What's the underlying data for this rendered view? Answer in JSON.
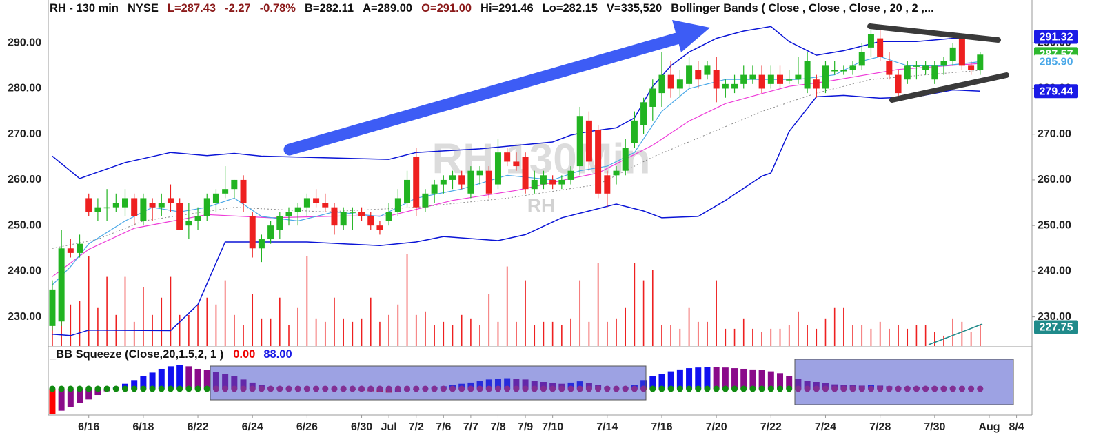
{
  "chart_data": {
    "type": "candlestick",
    "header": [
      {
        "text": "RH - 130 min",
        "color": "#111111"
      },
      {
        "text": "NYSE",
        "color": "#111111"
      },
      {
        "text": "L=287.43",
        "color": "#8b1a1a"
      },
      {
        "text": "-2.27",
        "color": "#8b1a1a"
      },
      {
        "text": "-0.78%",
        "color": "#8b1a1a"
      },
      {
        "text": "B=282.11",
        "color": "#111111"
      },
      {
        "text": "A=289.00",
        "color": "#111111"
      },
      {
        "text": "O=291.00",
        "color": "#8b1a1a"
      },
      {
        "text": "Hi=291.46",
        "color": "#111111"
      },
      {
        "text": "Lo=282.15",
        "color": "#111111"
      },
      {
        "text": "V=335,520",
        "color": "#111111"
      },
      {
        "text": "Bollinger Bands ( Close , Close , Close , 20 , 2 ,...",
        "color": "#111111"
      }
    ],
    "watermark": "RH 130Min",
    "watermark_sub": "RH",
    "xlim": [
      -0.45,
      107.7
    ],
    "xticks": [
      {
        "value": 4,
        "label": "6/16"
      },
      {
        "value": 10,
        "label": "6/18"
      },
      {
        "value": 16,
        "label": "6/22"
      },
      {
        "value": 22,
        "label": "6/24"
      },
      {
        "value": 28,
        "label": "6/26"
      },
      {
        "value": 34,
        "label": "6/30"
      },
      {
        "value": 37,
        "label": "Jul"
      },
      {
        "value": 40,
        "label": "7/2"
      },
      {
        "value": 43,
        "label": "7/6"
      },
      {
        "value": 46,
        "label": "7/7"
      },
      {
        "value": 49,
        "label": "7/8"
      },
      {
        "value": 52,
        "label": "7/9"
      },
      {
        "value": 55,
        "label": "7/10"
      },
      {
        "value": 61,
        "label": "7/14"
      },
      {
        "value": 67,
        "label": "7/16"
      },
      {
        "value": 73,
        "label": "7/20"
      },
      {
        "value": 79,
        "label": "7/22"
      },
      {
        "value": 85,
        "label": "7/24"
      },
      {
        "value": 91,
        "label": "7/28"
      },
      {
        "value": 97,
        "label": "7/30"
      },
      {
        "value": 103,
        "label": "Aug"
      },
      {
        "value": 106,
        "label": "8/4"
      }
    ],
    "ylim": [
      223.6,
      299.4
    ],
    "yticks": [
      {
        "value": 290,
        "label": "290.00"
      },
      {
        "value": 280,
        "label": "280.00"
      },
      {
        "value": 270,
        "label": "270.00"
      },
      {
        "value": 260,
        "label": "260.00"
      },
      {
        "value": 250,
        "label": "250.00"
      },
      {
        "value": 240,
        "label": "240.00"
      },
      {
        "value": 230,
        "label": "230.00"
      }
    ],
    "up_color": "#22b422",
    "down_color": "#ee2020",
    "open": [
      228,
      229,
      245,
      244,
      256,
      253,
      254,
      254,
      254,
      256,
      251,
      255,
      254,
      256,
      255,
      250,
      251,
      252,
      255,
      257,
      258,
      260,
      252,
      245,
      247,
      249,
      252,
      253,
      254,
      256,
      255,
      254,
      250,
      253,
      253,
      252,
      250,
      251,
      253,
      255,
      265,
      254,
      257,
      259,
      260,
      261,
      257,
      261,
      262,
      259,
      266,
      264,
      265,
      258,
      259,
      260,
      259,
      260,
      263,
      273,
      271,
      261,
      261,
      262,
      268,
      272,
      276,
      279,
      283,
      280,
      281,
      284,
      283,
      284,
      280,
      280,
      281,
      282,
      283,
      281,
      283,
      282,
      282,
      280,
      282,
      280,
      284,
      284,
      284,
      285,
      289,
      291,
      286,
      283,
      282,
      285,
      284,
      282,
      285,
      286,
      291,
      285,
      284
    ],
    "high": [
      238,
      249,
      247,
      248,
      257,
      256,
      258,
      257,
      258,
      257,
      257,
      256,
      257,
      259,
      256,
      255,
      254,
      257,
      258,
      263,
      260,
      261,
      253,
      248,
      251,
      253,
      254,
      255,
      257,
      258,
      257,
      255,
      254,
      254,
      254,
      253,
      251,
      255,
      258,
      262,
      267,
      258,
      260,
      261,
      262,
      262,
      263,
      263,
      263,
      269,
      267,
      266,
      266,
      262,
      262,
      261,
      261,
      263,
      276,
      275,
      272,
      262,
      263,
      269,
      275,
      278,
      282,
      288,
      286,
      284,
      287,
      286,
      286,
      287,
      282,
      283,
      285,
      285,
      285,
      285,
      285,
      284,
      287,
      288,
      283,
      286,
      286,
      285,
      286,
      290,
      293,
      293,
      288,
      284,
      286,
      286,
      286,
      286,
      287,
      290,
      292,
      286,
      288
    ],
    "low": [
      227,
      228,
      243,
      243,
      252,
      251,
      251,
      253,
      252,
      250,
      250,
      251,
      252,
      253,
      249,
      247,
      249,
      251,
      253,
      256,
      256,
      253,
      243,
      242,
      246,
      247,
      250,
      250,
      252,
      254,
      253,
      248,
      249,
      249,
      251,
      249,
      248,
      250,
      252,
      254,
      252,
      253,
      255,
      257,
      258,
      258,
      256,
      259,
      256,
      258,
      263,
      262,
      257,
      257,
      258,
      258,
      258,
      259,
      261,
      262,
      256,
      254,
      259,
      261,
      267,
      270,
      273,
      276,
      278,
      278,
      280,
      280,
      282,
      277,
      278,
      279,
      280,
      281,
      279,
      280,
      280,
      281,
      281,
      279,
      278,
      279,
      283,
      283,
      283,
      284,
      287,
      286,
      282,
      278,
      281,
      282,
      283,
      281,
      283,
      285,
      284,
      283,
      283
    ],
    "close": [
      236,
      245,
      244,
      246,
      253,
      254,
      254,
      255,
      256,
      252,
      256,
      254,
      255,
      255,
      249,
      251,
      252,
      256,
      257,
      258,
      260,
      255,
      245,
      247,
      250,
      252,
      253,
      254,
      256,
      255,
      254,
      250,
      253,
      253,
      252,
      250,
      249,
      253,
      256,
      260,
      254,
      257,
      259,
      260,
      261,
      259,
      262,
      262,
      257,
      266,
      264,
      263,
      258,
      260,
      261,
      259,
      260,
      262,
      274,
      264,
      257,
      257,
      262,
      267,
      273,
      277,
      280,
      283,
      280,
      282,
      285,
      282,
      285,
      280,
      281,
      281,
      283,
      283,
      280,
      283,
      281,
      282,
      283,
      286,
      280,
      285,
      284,
      284,
      285,
      288,
      292,
      287,
      283,
      279,
      285,
      285,
      285,
      285,
      286,
      289,
      285,
      284,
      287.43
    ],
    "volume_color": "#ee2020",
    "volume_ylim": [
      0,
      5250000
    ],
    "volume": [
      735000,
      945000,
      630000,
      682500,
      1365000,
      577500,
      1050000,
      472500,
      1050000,
      367500,
      892500,
      472500,
      735000,
      1050000,
      472500,
      472500,
      630000,
      735000,
      630000,
      997500,
      472500,
      315000,
      787500,
      420000,
      420000,
      735000,
      315000,
      577500,
      1365000,
      420000,
      367500,
      735000,
      420000,
      367500,
      420000,
      735000,
      367500,
      472500,
      630000,
      1396500,
      472500,
      525000,
      315000,
      367500,
      315000,
      472500,
      420000,
      315000,
      787500,
      367500,
      1207500,
      367500,
      997500,
      315000,
      367500,
      367500,
      315000,
      420000,
      997500,
      367500,
      1260000,
      367500,
      420000,
      577500,
      1260000,
      997500,
      1155000,
      315000,
      315000,
      262500,
      577500,
      367500,
      367500,
      997500,
      262500,
      262500,
      420000,
      262500,
      210000,
      262500,
      262500,
      315000,
      525000,
      315000,
      262500,
      420000,
      577500,
      577500,
      315000,
      315000,
      262500,
      367500,
      262500,
      315000,
      262500,
      315000,
      315000,
      210000,
      157500,
      420000,
      367500,
      210000,
      335520
    ],
    "overlays": [
      {
        "color": "#0a14d6",
        "width": 1.5,
        "dashed": false,
        "x": [
          0,
          3,
          8,
          13,
          17,
          20,
          23,
          37,
          40,
          47,
          55,
          57,
          59,
          62,
          64,
          66,
          68,
          70,
          73,
          76,
          79,
          81,
          84,
          87,
          91,
          95,
          99,
          102
        ],
        "values": [
          265.2,
          260.3,
          263.8,
          266,
          265.3,
          265.8,
          265.2,
          264.5,
          266,
          266.8,
          268.3,
          269.8,
          270.6,
          271.4,
          273.6,
          280.5,
          285,
          288,
          291,
          292.6,
          293.6,
          290.3,
          287.3,
          288.3,
          290.3,
          290.3,
          291,
          291.32
        ]
      },
      {
        "color": "#0a14d6",
        "width": 1.5,
        "dashed": false,
        "x": [
          0,
          2,
          4,
          13,
          16,
          19,
          21,
          28,
          36,
          40,
          43,
          49,
          52,
          56,
          59,
          62,
          65,
          67,
          71,
          74,
          78,
          79,
          81,
          84,
          87,
          91,
          95,
          99,
          102
        ],
        "values": [
          226.2,
          225.9,
          227.1,
          227,
          232.7,
          246.4,
          246.4,
          246.4,
          245.6,
          246.4,
          247.6,
          246.7,
          248,
          251.7,
          253.2,
          254.7,
          253.2,
          251.7,
          252,
          255.5,
          260.8,
          261.5,
          270.6,
          278.2,
          278.5,
          277.9,
          278.2,
          279.7,
          279.44
        ]
      },
      {
        "color": "#ee3ad8",
        "width": 1.2,
        "dashed": false,
        "x": [
          0,
          4,
          9,
          17,
          24,
          32,
          37,
          44,
          51,
          57,
          60,
          66,
          70,
          74,
          78,
          81,
          85,
          90,
          93,
          97,
          102
        ],
        "values": [
          238.8,
          244.8,
          249.4,
          252.4,
          251.7,
          252.1,
          252.1,
          255.5,
          257.7,
          260.3,
          261.5,
          267.6,
          272.9,
          276.7,
          278.9,
          280.5,
          281.5,
          283.2,
          284.2,
          284.8,
          285.5
        ]
      },
      {
        "color": "#4aa8e8",
        "width": 1.2,
        "dashed": false,
        "x": [
          0,
          2,
          4,
          8,
          11,
          14,
          17,
          20,
          23,
          27,
          31,
          36,
          40,
          45,
          50,
          55,
          58,
          61,
          64,
          67,
          70,
          74,
          78,
          82,
          86,
          89,
          91,
          94,
          98,
          102
        ],
        "values": [
          237,
          241,
          246,
          251,
          254,
          253,
          254,
          256,
          252,
          251,
          253,
          252,
          256,
          258,
          261,
          260,
          262,
          263,
          266,
          275,
          280,
          282,
          282,
          282,
          283,
          286,
          287,
          285,
          285,
          285.9
        ]
      },
      {
        "color": "#888888",
        "width": 1,
        "dashed": true,
        "x": [
          0,
          5,
          10,
          20,
          30,
          40,
          50,
          60,
          66,
          72,
          78,
          84,
          90,
          96,
          102
        ],
        "values": [
          245,
          247,
          251,
          254,
          253,
          254,
          256,
          259,
          265,
          270,
          275,
          279,
          282,
          283,
          284
        ]
      }
    ],
    "price_labels": [
      {
        "value": 291.32,
        "label": "291.32",
        "bg": "#1a1ae6",
        "fg": "#ffffff"
      },
      {
        "value": 287.57,
        "label": "287.57",
        "bg": "#2eb82e",
        "fg": "#ffffff"
      },
      {
        "value": 285.9,
        "label": "285.90",
        "bg": "#ffffff",
        "fg": "#4aa8e8"
      },
      {
        "value": 279.44,
        "label": "279.44",
        "bg": "#1a1ae6",
        "fg": "#ffffff"
      },
      {
        "value": 227.75,
        "label": "227.75",
        "bg": "#1f8a8a",
        "fg": "#ffffff"
      }
    ],
    "indicator": {
      "title": "_BB Squeeze (Close,20,1.5,2, 1 )",
      "value1": "0.00",
      "value1_color": "#ee0000",
      "value2": "88.00",
      "value2_color": "#1a1ae6",
      "ylim": [
        -4.2,
        6.4
      ],
      "momentum_colors": {
        "rising_positive": "#1010f0",
        "falling_positive": "#8a0a8a",
        "rising_negative": "#8a0a8a",
        "falling_negative": "#ff0000"
      },
      "momentum": [
        -4,
        -3.5,
        -2.9,
        -2.3,
        -1.7,
        -1.0,
        -0.4,
        0.2,
        0.8,
        1.4,
        2.0,
        2.6,
        3.2,
        3.6,
        3.8,
        3.6,
        3.2,
        3.0,
        2.7,
        2.4,
        2.0,
        1.5,
        1.0,
        0.6,
        0.3,
        0.2,
        0.1,
        0.05,
        0.1,
        0.1,
        0.05,
        0,
        -0.1,
        -0.2,
        -0.3,
        -0.4,
        -0.5,
        -0.6,
        -0.5,
        -0.3,
        -0.1,
        0.1,
        0.2,
        0.4,
        0.6,
        0.8,
        1.0,
        1.3,
        1.5,
        1.6,
        1.7,
        1.6,
        1.5,
        1.3,
        1.1,
        0.9,
        0.8,
        1.0,
        1.2,
        0.9,
        0.6,
        0.3,
        0.1,
        0.2,
        0.6,
        1.4,
        2.0,
        2.4,
        2.8,
        3.1,
        3.3,
        3.4,
        3.5,
        3.5,
        3.4,
        3.3,
        3.2,
        3.1,
        3.0,
        2.8,
        2.5,
        2.0,
        1.6,
        1.3,
        1.1,
        0.9,
        0.7,
        0.6,
        0.6,
        0.5,
        0.6,
        0.5,
        0.4,
        0.3,
        0.3,
        0.3,
        0.2,
        0.2,
        0.2,
        0.2,
        0.1,
        0.1,
        0.1
      ],
      "dot_colors": {
        "on": "#c8185e",
        "off": "#118a11"
      },
      "squeeze_on": [
        false,
        false,
        false,
        false,
        false,
        false,
        false,
        false,
        false,
        false,
        false,
        false,
        false,
        false,
        false,
        false,
        false,
        false,
        true,
        true,
        true,
        true,
        true,
        true,
        true,
        true,
        true,
        true,
        true,
        true,
        true,
        true,
        true,
        true,
        true,
        true,
        true,
        true,
        true,
        true,
        true,
        true,
        true,
        true,
        true,
        true,
        true,
        true,
        true,
        true,
        true,
        true,
        true,
        true,
        true,
        true,
        true,
        true,
        true,
        true,
        true,
        true,
        true,
        true,
        true,
        true,
        false,
        false,
        false,
        false,
        false,
        false,
        false,
        false,
        false,
        false,
        false,
        false,
        false,
        false,
        false,
        false,
        true,
        true,
        true,
        true,
        true,
        true,
        true,
        true,
        true,
        true,
        true,
        true,
        true,
        true,
        true,
        true,
        true,
        true,
        true,
        true,
        true
      ]
    }
  }
}
